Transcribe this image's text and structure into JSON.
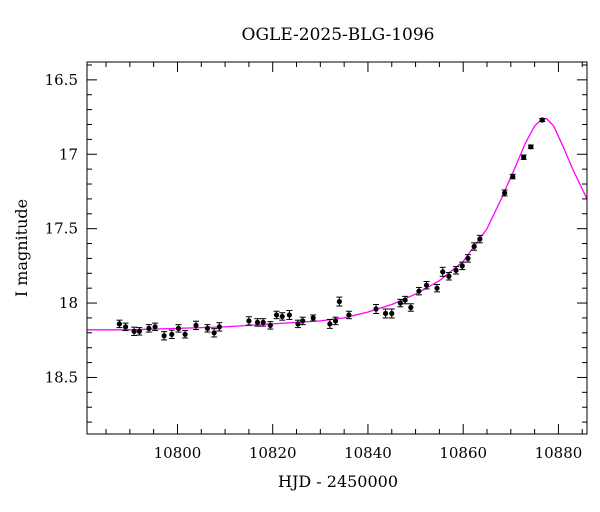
{
  "chart_data": {
    "type": "scatter",
    "title": "OGLE-2025-BLG-1096",
    "xlabel": "HJD - 2450000",
    "ylabel": "I magnitude",
    "xlim": [
      10781,
      10886
    ],
    "ylim": [
      18.88,
      16.38
    ],
    "y_inverted": true,
    "grid": false,
    "legend": "none",
    "x_ticks": [
      10800,
      10820,
      10840,
      10860,
      10880
    ],
    "y_ticks": [
      16.5,
      17,
      17.5,
      18,
      18.5
    ],
    "x_tick_labels": [
      "10800",
      "10820",
      "10840",
      "10860",
      "10880"
    ],
    "y_tick_labels": [
      "16.5",
      "17",
      "17.5",
      "18",
      "18.5"
    ],
    "colors": {
      "data": "#000000",
      "model": "#ff00ff"
    },
    "series": [
      {
        "type": "scatter_errorbar",
        "x": [
          10787.8,
          10789.1,
          10790.9,
          10792.0,
          10794.0,
          10795.3,
          10797.2,
          10798.8,
          10800.2,
          10801.6,
          10803.9,
          10806.3,
          10807.7,
          10808.8,
          10815.0,
          10816.8,
          10818.0,
          10819.5,
          10820.8,
          10822.0,
          10823.5,
          10825.3,
          10826.3,
          10828.5,
          10832.0,
          10833.2,
          10834.0,
          10836.0,
          10841.7,
          10843.7,
          10845.0,
          10846.8,
          10847.8,
          10849.0,
          10850.7,
          10852.3,
          10854.5,
          10855.7,
          10857.0,
          10858.5,
          10859.8,
          10861.0,
          10862.3,
          10863.5,
          10868.7,
          10870.4,
          10872.7,
          10874.2,
          10876.6
        ],
        "y": [
          18.14,
          18.16,
          18.19,
          18.19,
          18.17,
          18.16,
          18.22,
          18.21,
          18.17,
          18.21,
          18.15,
          18.17,
          18.2,
          18.16,
          18.12,
          18.13,
          18.13,
          18.15,
          18.08,
          18.09,
          18.08,
          18.14,
          18.12,
          18.1,
          18.14,
          18.12,
          17.99,
          18.08,
          18.04,
          18.07,
          18.07,
          18.0,
          17.98,
          18.03,
          17.92,
          17.88,
          17.9,
          17.79,
          17.82,
          17.78,
          17.75,
          17.7,
          17.62,
          17.57,
          17.26,
          17.15,
          17.02,
          16.95,
          16.77
        ],
        "yerr": [
          0.025,
          0.025,
          0.028,
          0.025,
          0.025,
          0.025,
          0.028,
          0.028,
          0.025,
          0.025,
          0.028,
          0.025,
          0.028,
          0.028,
          0.028,
          0.025,
          0.025,
          0.025,
          0.025,
          0.025,
          0.03,
          0.025,
          0.025,
          0.02,
          0.03,
          0.025,
          0.03,
          0.025,
          0.03,
          0.03,
          0.03,
          0.025,
          0.025,
          0.025,
          0.025,
          0.025,
          0.025,
          0.03,
          0.025,
          0.025,
          0.025,
          0.025,
          0.025,
          0.025,
          0.02,
          0.015,
          0.015,
          0.012,
          0.01
        ]
      },
      {
        "type": "line",
        "x": [
          10781,
          10790,
          10800,
          10810,
          10820,
          10830,
          10835,
          10840,
          10845,
          10850,
          10855,
          10860,
          10865,
          10868,
          10871,
          10873,
          10875,
          10876.5,
          10877.5,
          10879,
          10881,
          10883,
          10886
        ],
        "y": [
          18.18,
          18.18,
          18.17,
          18.16,
          18.14,
          18.12,
          18.1,
          18.06,
          18.01,
          17.94,
          17.85,
          17.72,
          17.5,
          17.3,
          17.08,
          16.93,
          16.81,
          16.765,
          16.76,
          16.81,
          16.95,
          17.1,
          17.3
        ]
      }
    ]
  }
}
